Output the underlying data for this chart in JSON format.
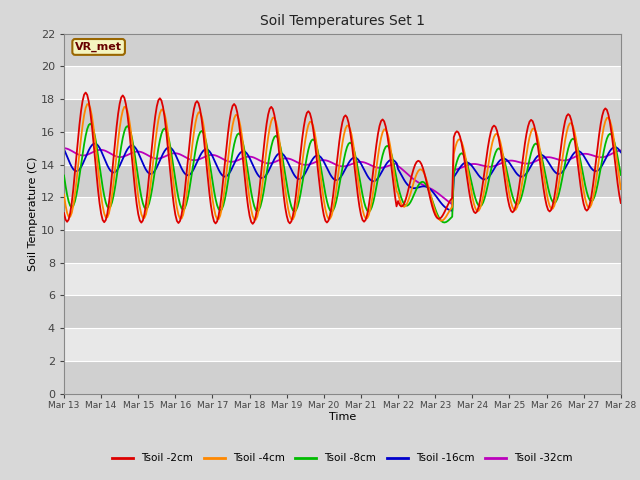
{
  "title": "Soil Temperatures Set 1",
  "xlabel": "Time",
  "ylabel": "Soil Temperature (C)",
  "ylim": [
    0,
    22
  ],
  "yticks": [
    0,
    2,
    4,
    6,
    8,
    10,
    12,
    14,
    16,
    18,
    20,
    22
  ],
  "series_colors": {
    "Tsoil -2cm": "#dd0000",
    "Tsoil -4cm": "#ff8800",
    "Tsoil -8cm": "#00bb00",
    "Tsoil -16cm": "#0000cc",
    "Tsoil -32cm": "#bb00bb"
  },
  "annotation_text": "VR_met",
  "bg_light": "#e8e8e8",
  "bg_dark": "#d0d0d0",
  "grid_color": "#ffffff",
  "fig_bg": "#d8d8d8"
}
